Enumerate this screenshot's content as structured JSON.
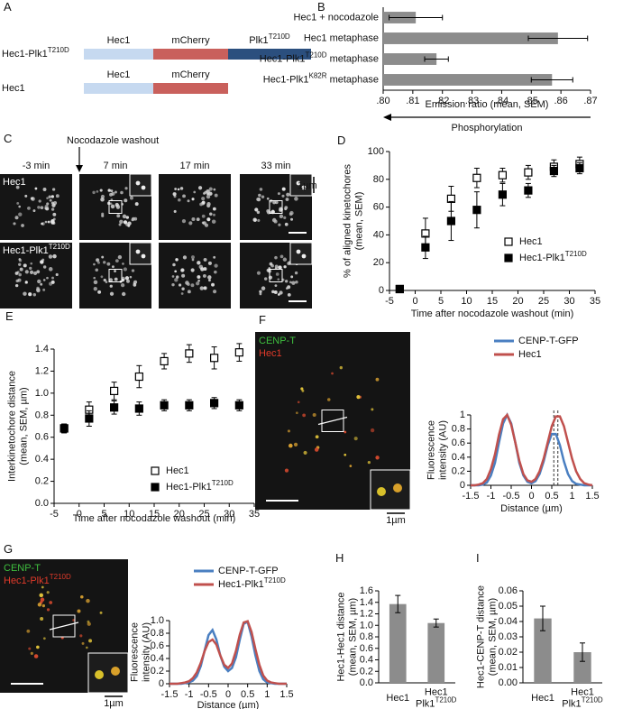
{
  "diagram": {
    "label": "A",
    "constructs": [
      {
        "name": "Hec1-Plk1^T210D",
        "domains": [
          "Hec1",
          "mCherry",
          "Plk1^T210D"
        ]
      },
      {
        "name": "Hec1",
        "domains": [
          "Hec1",
          "mCherry"
        ]
      }
    ],
    "colors": [
      "#c6d9f0",
      "#c9605c",
      "#2b4f7e"
    ]
  },
  "microscopy": {
    "label": "C",
    "annotation": "Nocodazole washout",
    "columns": [
      "-3 min",
      "7 min",
      "17 min",
      "33 min"
    ],
    "rows": [
      "Hec1",
      "Hec1-Plk1^T210D"
    ],
    "scale_bar": "1µm"
  },
  "chart_data": [
    {
      "type": "bar",
      "horizontal": true,
      "label": "B",
      "categories": [
        "Hec1 + nocodazole",
        "Hec1 metaphase",
        "Hec1-Plk1^T210D metaphase",
        "Hec1-Plk1^K82R metaphase"
      ],
      "values": [
        0.811,
        0.859,
        0.818,
        0.857
      ],
      "errors": [
        0.009,
        0.01,
        0.004,
        0.007
      ],
      "color": "#8c8c8c",
      "xlim": [
        0.8,
        0.87
      ],
      "xticks": [
        {
          "value": 0.8,
          "label": ".80"
        },
        {
          "value": 0.81,
          "label": ".81"
        },
        {
          "value": 0.82,
          "label": ".82"
        },
        {
          "value": 0.83,
          "label": ".83"
        },
        {
          "value": 0.84,
          "label": ".84"
        },
        {
          "value": 0.85,
          "label": ".85"
        },
        {
          "value": 0.86,
          "label": ".86"
        },
        {
          "value": 0.87,
          "label": ".87"
        }
      ],
      "xlabel": "Emission ratio (mean, SEM)",
      "annotation": "Phosphorylation"
    },
    {
      "type": "scatter",
      "label": "D",
      "x": [
        -3,
        2,
        7,
        12,
        17,
        22,
        27,
        32
      ],
      "xlim": [
        -5,
        35
      ],
      "xticks": [
        -5,
        0,
        5,
        10,
        15,
        20,
        25,
        30,
        35
      ],
      "ylim": [
        0,
        100
      ],
      "yticks": [
        0,
        20,
        40,
        60,
        80,
        100
      ],
      "ylabel": "% of aligned kinetochores\n(mean, SEM)",
      "xlabel": "Time after nocodazole washout (min)",
      "legend": "lower right",
      "series": [
        {
          "name": "Hec1",
          "marker": "open",
          "color": "#000000",
          "values": [
            1,
            41,
            66,
            81,
            83,
            85,
            89,
            91
          ],
          "errors": [
            1,
            11,
            9,
            7,
            5,
            5,
            5,
            5
          ]
        },
        {
          "name": "Hec1-Plk1^T210D",
          "marker": "filled",
          "color": "#000000",
          "values": [
            1,
            31,
            50,
            58,
            69,
            72,
            86,
            88
          ],
          "errors": [
            1,
            8,
            14,
            13,
            8,
            5,
            4,
            4
          ]
        }
      ]
    },
    {
      "type": "scatter",
      "label": "E",
      "x": [
        -3,
        2,
        7,
        12,
        17,
        22,
        27,
        32
      ],
      "xlim": [
        -5,
        35
      ],
      "xticks": [
        -5,
        0,
        5,
        10,
        15,
        20,
        25,
        30,
        35
      ],
      "ylim": [
        0,
        1.4
      ],
      "yticks": [
        {
          "value": 0,
          "label": "0.0"
        },
        0.2,
        0.4,
        0.6,
        0.8,
        {
          "value": 1,
          "label": "1.0"
        },
        1.2,
        1.4
      ],
      "ylabel": "Interkinetochore distance\n(mean, SEM, µm)",
      "xlabel": "Time after nocodazole washout (min)",
      "legend": "lower right",
      "series": [
        {
          "name": "Hec1",
          "marker": "open",
          "color": "#000000",
          "values": [
            0.68,
            0.85,
            1.02,
            1.15,
            1.29,
            1.36,
            1.32,
            1.37
          ],
          "errors": [
            0.04,
            0.07,
            0.08,
            0.1,
            0.07,
            0.08,
            0.1,
            0.08
          ]
        },
        {
          "name": "Hec1-Plk1^T210D",
          "marker": "filled",
          "color": "#000000",
          "values": [
            0.68,
            0.77,
            0.87,
            0.86,
            0.89,
            0.89,
            0.91,
            0.89
          ],
          "errors": [
            0.04,
            0.07,
            0.06,
            0.06,
            0.05,
            0.05,
            0.05,
            0.05
          ]
        }
      ]
    },
    {
      "type": "line",
      "label": "F",
      "image_labels": [
        {
          "text": "CENP-T",
          "color": "#3fbf3f"
        },
        {
          "text": "Hec1",
          "color": "#e03a2a"
        }
      ],
      "scale_bar": "1µm",
      "x": [
        -1.5,
        -1.4,
        -1.3,
        -1.2,
        -1.1,
        -1,
        -0.9,
        -0.8,
        -0.7,
        -0.6,
        -0.5,
        -0.4,
        -0.3,
        -0.2,
        -0.1,
        0,
        0.1,
        0.2,
        0.3,
        0.4,
        0.5,
        0.6,
        0.7,
        0.8,
        0.9,
        1,
        1.1,
        1.2,
        1.3,
        1.4,
        1.5
      ],
      "xlim": [
        -1.5,
        1.5
      ],
      "xticks": [
        -1.5,
        -1,
        -0.5,
        0,
        0.5,
        1,
        1.5
      ],
      "ylim": [
        0,
        1
      ],
      "yticks": [
        0,
        0.2,
        0.4,
        0.6,
        0.8,
        1
      ],
      "ylabel": "Fluorescence\nintensity (AU)",
      "xlabel": "Distance (µm)",
      "legend": "upper right",
      "vlines": [
        0.55,
        0.65
      ],
      "series": [
        {
          "name": "CENP-T-GFP",
          "color": "#4a7fc1",
          "values": [
            0,
            0,
            0,
            0.01,
            0.04,
            0.14,
            0.32,
            0.61,
            0.88,
            1,
            0.88,
            0.61,
            0.32,
            0.14,
            0.05,
            0.03,
            0.06,
            0.16,
            0.34,
            0.57,
            0.73,
            0.73,
            0.57,
            0.34,
            0.16,
            0.06,
            0.02,
            0.01,
            0,
            0,
            0
          ]
        },
        {
          "name": "Hec1",
          "color": "#c0504d",
          "values": [
            0,
            0,
            0.01,
            0.03,
            0.09,
            0.23,
            0.44,
            0.72,
            0.94,
            1,
            0.86,
            0.61,
            0.35,
            0.16,
            0.07,
            0.05,
            0.09,
            0.2,
            0.38,
            0.61,
            0.84,
            0.98,
            0.98,
            0.84,
            0.61,
            0.38,
            0.2,
            0.09,
            0.03,
            0.01,
            0
          ]
        }
      ]
    },
    {
      "type": "line",
      "label": "G",
      "image_labels": [
        {
          "text": "CENP-T",
          "color": "#3fbf3f"
        },
        {
          "text": "Hec1-Plk1^T210D",
          "color": "#e03a2a"
        }
      ],
      "scale_bar": "1µm",
      "x": [
        -1.5,
        -1.4,
        -1.3,
        -1.2,
        -1.1,
        -1,
        -0.9,
        -0.8,
        -0.7,
        -0.6,
        -0.5,
        -0.4,
        -0.3,
        -0.2,
        -0.1,
        0,
        0.1,
        0.2,
        0.3,
        0.4,
        0.5,
        0.6,
        0.7,
        0.8,
        0.9,
        1,
        1.1,
        1.2,
        1.3,
        1.4,
        1.5
      ],
      "xlim": [
        -1.5,
        1.5
      ],
      "xticks": [
        -1.5,
        -1,
        -0.5,
        0,
        0.5,
        1,
        1.5
      ],
      "ylim": [
        0,
        1
      ],
      "yticks": [
        0,
        0.2,
        0.4,
        0.6,
        0.8,
        {
          "value": 1,
          "label": "1.0"
        }
      ],
      "ylabel": "Fluorescence\nintensity (AU)",
      "xlabel": "Distance (µm)",
      "legend": "upper right",
      "series": [
        {
          "name": "CENP-T-GFP",
          "color": "#4a7fc1",
          "values": [
            0,
            0,
            0,
            0,
            0.01,
            0.02,
            0.05,
            0.12,
            0.28,
            0.53,
            0.77,
            0.85,
            0.7,
            0.45,
            0.27,
            0.2,
            0.25,
            0.42,
            0.7,
            0.95,
            0.98,
            0.75,
            0.45,
            0.2,
            0.07,
            0.02,
            0.01,
            0,
            0,
            0,
            0
          ]
        },
        {
          "name": "Hec1-Plk1^T210D",
          "color": "#c0504d",
          "values": [
            0,
            0,
            0,
            0.01,
            0.02,
            0.04,
            0.09,
            0.18,
            0.33,
            0.52,
            0.66,
            0.7,
            0.62,
            0.45,
            0.3,
            0.25,
            0.32,
            0.52,
            0.78,
            0.97,
            0.99,
            0.82,
            0.55,
            0.3,
            0.13,
            0.05,
            0.02,
            0.01,
            0,
            0,
            0
          ]
        }
      ]
    },
    {
      "type": "bar",
      "label": "H",
      "categories": [
        "Hec1",
        "Hec1\nPlk1^T210D"
      ],
      "values": [
        1.37,
        1.04
      ],
      "errors": [
        0.15,
        0.07
      ],
      "color": "#8c8c8c",
      "ylim": [
        0,
        1.6
      ],
      "yticks": [
        {
          "value": 0,
          "label": "0.0"
        },
        0.2,
        0.4,
        0.6,
        0.8,
        {
          "value": 1,
          "label": "1.0"
        },
        1.2,
        1.4,
        1.6
      ],
      "ylabel": "Hec1-Hec1 distance\n(mean, SEM, µm)"
    },
    {
      "type": "bar",
      "label": "I",
      "categories": [
        "Hec1",
        "Hec1\nPlk1^T210D"
      ],
      "values": [
        0.042,
        0.02
      ],
      "errors": [
        0.008,
        0.006
      ],
      "color": "#8c8c8c",
      "ylim": [
        0,
        0.06
      ],
      "yticks": [
        {
          "value": 0,
          "label": "0.00"
        },
        {
          "value": 0.01,
          "label": "0.01"
        },
        {
          "value": 0.02,
          "label": "0.02"
        },
        {
          "value": 0.03,
          "label": "0.03"
        },
        {
          "value": 0.04,
          "label": "0.04"
        },
        {
          "value": 0.05,
          "label": "0.05"
        },
        {
          "value": 0.06,
          "label": "0.06"
        }
      ],
      "ylabel": "Hec1-CENP-T distance\n(mean, SEM, µm)"
    }
  ]
}
